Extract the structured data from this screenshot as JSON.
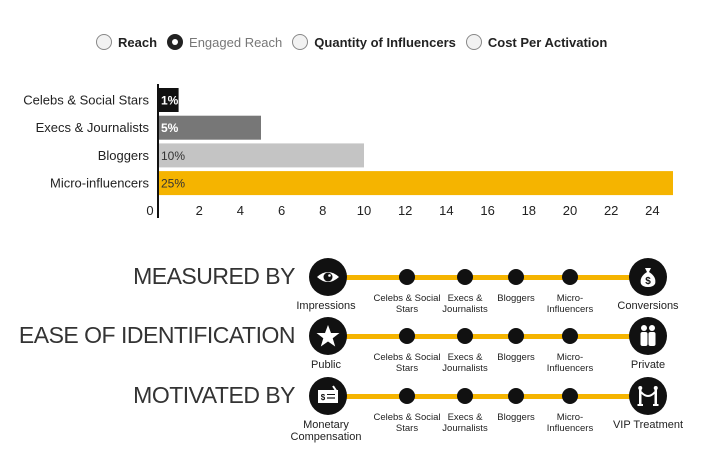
{
  "tabs": [
    {
      "label": "Reach",
      "selected": false
    },
    {
      "label": "Engaged Reach",
      "selected": true
    },
    {
      "label": "Quantity of Influencers",
      "selected": false
    },
    {
      "label": "Cost Per Activation",
      "selected": false
    }
  ],
  "chart_data": {
    "type": "bar",
    "orientation": "horizontal",
    "categories": [
      "Celebs & Social Stars",
      "Execs & Journalists",
      "Bloggers",
      "Micro-influencers"
    ],
    "values": [
      1,
      5,
      10,
      25
    ],
    "data_labels": [
      "1%",
      "5%",
      "10%",
      "25%"
    ],
    "colors": [
      "#111111",
      "#777777",
      "#c4c4c4",
      "#f5b400"
    ],
    "xlim": [
      0,
      25.5
    ],
    "xticks": [
      0,
      2,
      4,
      6,
      8,
      10,
      12,
      14,
      16,
      18,
      20,
      22,
      24
    ],
    "grid": false
  },
  "scales": [
    {
      "title": "MEASURED BY",
      "left_label": "Impressions",
      "right_label": "Conversions",
      "left_icon": "eye-icon",
      "right_icon": "money-bag-icon",
      "points": [
        "Celebs & Social Stars",
        "Execs & Journalists",
        "Bloggers",
        "Micro-Influencers"
      ]
    },
    {
      "title": "EASE OF IDENTIFICATION",
      "left_label": "Public",
      "right_label": "Private",
      "left_icon": "star-icon",
      "right_icon": "people-icon",
      "points": [
        "Celebs & Social Stars",
        "Execs & Journalists",
        "Bloggers",
        "Micro-Influencers"
      ]
    },
    {
      "title": "MOTIVATED BY",
      "left_label": "Monetary Compensation",
      "right_label": "VIP Treatment",
      "left_icon": "cheque-icon",
      "right_icon": "velvet-rope-icon",
      "points": [
        "Celebs & Social Stars",
        "Execs & Journalists",
        "Bloggers",
        "Micro-Influencers"
      ]
    }
  ],
  "accent_color": "#f5b400"
}
